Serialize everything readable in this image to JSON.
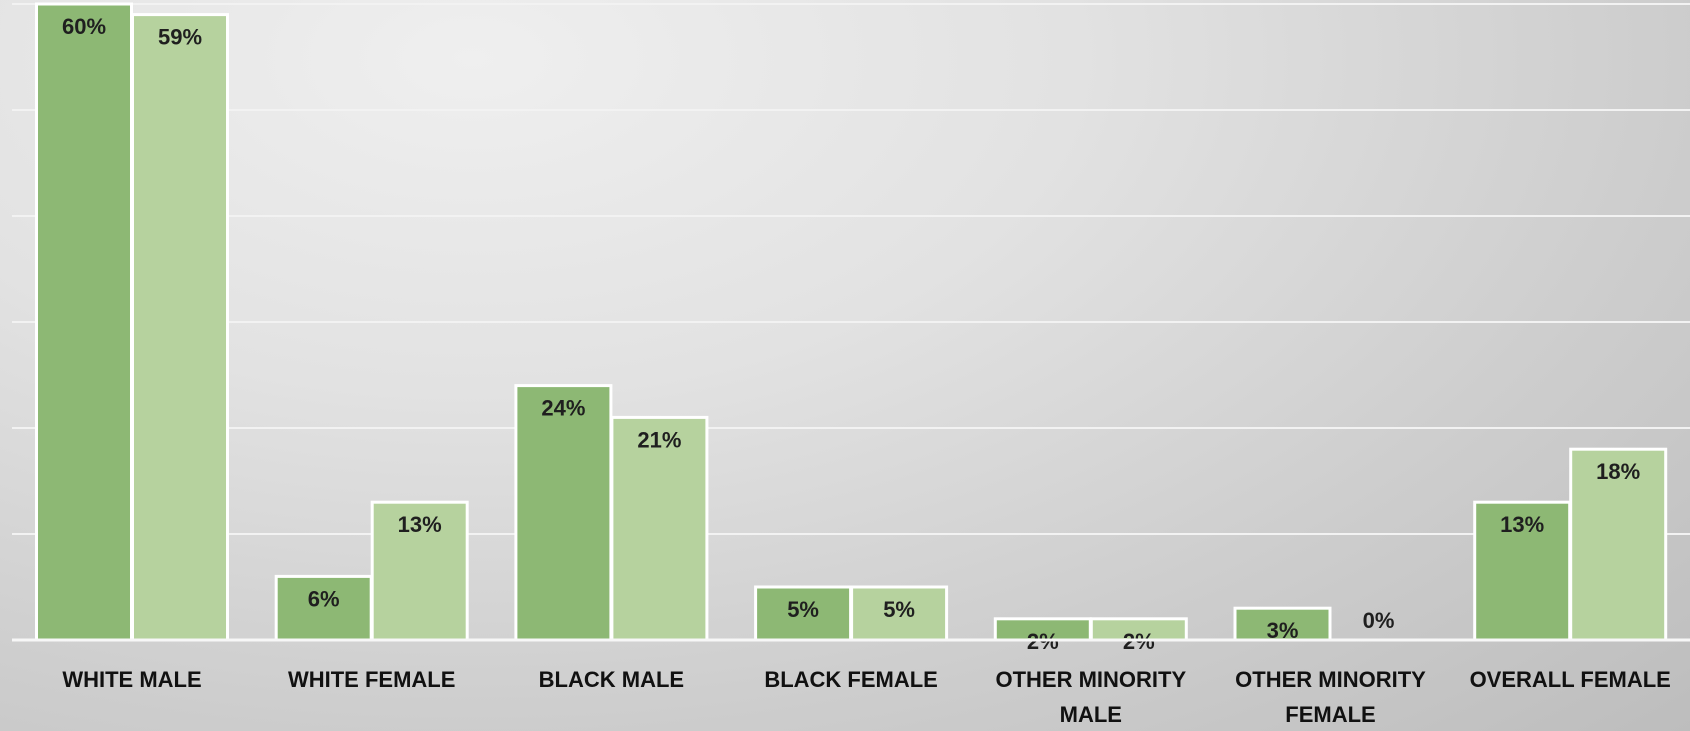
{
  "chart_data": {
    "type": "bar",
    "categories": [
      [
        "WHITE MALE"
      ],
      [
        "WHITE FEMALE"
      ],
      [
        "BLACK MALE"
      ],
      [
        "BLACK FEMALE"
      ],
      [
        "OTHER MINORITY",
        "MALE"
      ],
      [
        "OTHER MINORITY",
        "FEMALE"
      ],
      [
        "OVERALL FEMALE"
      ]
    ],
    "series": [
      {
        "values": [
          60,
          6,
          24,
          5,
          2,
          3,
          13
        ],
        "labels": [
          "60%",
          "6%",
          "24%",
          "5%",
          "2%",
          "3%",
          "13%"
        ],
        "color": "#8db874"
      },
      {
        "values": [
          59,
          13,
          21,
          5,
          2,
          0,
          18
        ],
        "labels": [
          "59%",
          "13%",
          "21%",
          "5%",
          "2%",
          "0%",
          "18%"
        ],
        "color": "#b6d29e"
      }
    ],
    "ylim": [
      0,
      60
    ],
    "gridlines": [
      10,
      20,
      30,
      40,
      50,
      60
    ],
    "grid": true,
    "legend": "none",
    "title": "",
    "xlabel": "",
    "ylabel": ""
  }
}
